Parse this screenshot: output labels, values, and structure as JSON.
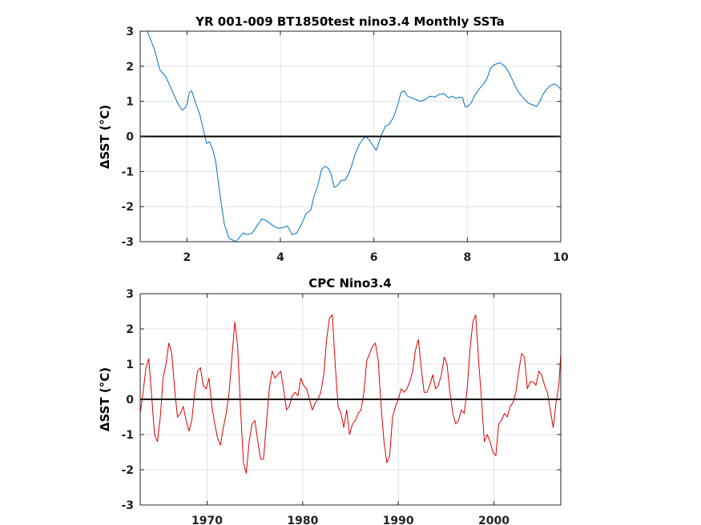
{
  "chart_data": [
    {
      "type": "line",
      "title": "YR 001-009 BT1850test nino3.4 Monthly SSTa",
      "ylabel": "ΔSST (°C)",
      "xlabel": "",
      "xlim": [
        1.0,
        10.0
      ],
      "ylim": [
        -3,
        3
      ],
      "xticks": [
        2,
        4,
        6,
        8,
        10
      ],
      "yticks": [
        -3,
        -2,
        -1,
        0,
        1,
        2,
        3
      ],
      "grid": true,
      "zero_line": true,
      "line_color": "#0072bd",
      "series": [
        {
          "x": [
            1.0,
            1.15,
            1.3,
            1.42,
            1.55,
            1.65,
            1.75,
            1.82,
            1.9,
            1.95,
            2.0,
            2.05,
            2.1,
            2.2,
            2.28,
            2.35,
            2.42,
            2.48,
            2.55,
            2.62,
            2.7,
            2.8,
            2.9,
            3.05,
            3.2,
            3.3,
            3.4,
            3.5,
            3.6,
            3.7,
            3.85,
            3.95,
            4.05,
            4.15,
            4.25,
            4.35,
            4.45,
            4.55,
            4.65,
            4.72,
            4.8,
            4.88,
            4.95,
            5.02,
            5.08,
            5.15,
            5.22,
            5.3,
            5.38,
            5.45,
            5.52,
            5.6,
            5.68,
            5.75,
            5.82,
            5.9,
            6.0,
            6.05,
            6.1,
            6.18,
            6.25,
            6.33,
            6.42,
            6.5,
            6.58,
            6.65,
            6.72,
            6.8,
            6.9,
            7.0,
            7.1,
            7.2,
            7.3,
            7.4,
            7.5,
            7.6,
            7.68,
            7.75,
            7.82,
            7.9,
            7.95,
            8.0,
            8.08,
            8.15,
            8.25,
            8.35,
            8.42,
            8.5,
            8.58,
            8.7,
            8.8,
            8.88,
            8.95,
            9.02,
            9.1,
            9.2,
            9.3,
            9.4,
            9.48,
            9.55,
            9.62,
            9.7,
            9.78,
            9.85,
            9.92,
            10.0
          ],
          "y": [
            3.8,
            3.0,
            2.5,
            1.9,
            1.7,
            1.4,
            1.1,
            0.9,
            0.75,
            0.8,
            0.9,
            1.25,
            1.3,
            0.9,
            0.6,
            0.2,
            -0.2,
            -0.15,
            -0.35,
            -0.75,
            -1.6,
            -2.5,
            -2.9,
            -3.0,
            -2.75,
            -2.8,
            -2.75,
            -2.55,
            -2.35,
            -2.4,
            -2.55,
            -2.62,
            -2.6,
            -2.55,
            -2.8,
            -2.75,
            -2.5,
            -2.2,
            -2.1,
            -1.7,
            -1.4,
            -0.95,
            -0.85,
            -0.9,
            -1.05,
            -1.45,
            -1.4,
            -1.25,
            -1.25,
            -1.1,
            -0.85,
            -0.5,
            -0.25,
            -0.1,
            0.0,
            -0.1,
            -0.3,
            -0.4,
            -0.2,
            0.1,
            0.3,
            0.35,
            0.55,
            0.85,
            1.25,
            1.3,
            1.15,
            1.1,
            1.05,
            1.0,
            1.05,
            1.15,
            1.12,
            1.2,
            1.22,
            1.1,
            1.15,
            1.08,
            1.12,
            1.1,
            0.85,
            0.85,
            0.95,
            1.15,
            1.35,
            1.5,
            1.65,
            1.95,
            2.05,
            2.1,
            2.0,
            1.85,
            1.65,
            1.45,
            1.25,
            1.1,
            0.95,
            0.9,
            0.85,
            1.0,
            1.2,
            1.35,
            1.45,
            1.5,
            1.45,
            1.35
          ]
        }
      ]
    },
    {
      "type": "line",
      "title": "CPC Nino3.4",
      "ylabel": "ΔSST (°C)",
      "xlabel": "",
      "xlim": [
        1963,
        2007
      ],
      "ylim": [
        -3,
        3
      ],
      "xticks": [
        1970,
        1980,
        1990,
        2000
      ],
      "yticks": [
        -3,
        -2,
        -1,
        0,
        1,
        2,
        3
      ],
      "grid": true,
      "zero_line": true,
      "line_color": "#e00000",
      "series": [
        {
          "x": [
            1963.0,
            1963.3,
            1963.6,
            1963.9,
            1964.2,
            1964.5,
            1964.8,
            1965.1,
            1965.4,
            1965.7,
            1966.0,
            1966.3,
            1966.6,
            1966.9,
            1967.2,
            1967.5,
            1967.8,
            1968.1,
            1968.4,
            1968.7,
            1969.0,
            1969.3,
            1969.6,
            1969.9,
            1970.2,
            1970.5,
            1970.8,
            1971.1,
            1971.4,
            1971.7,
            1972.0,
            1972.3,
            1972.6,
            1972.9,
            1973.2,
            1973.5,
            1973.8,
            1974.1,
            1974.4,
            1974.7,
            1975.0,
            1975.3,
            1975.6,
            1975.9,
            1976.2,
            1976.5,
            1976.8,
            1977.1,
            1977.4,
            1977.7,
            1978.0,
            1978.3,
            1978.6,
            1978.9,
            1979.2,
            1979.5,
            1979.8,
            1980.1,
            1980.4,
            1980.7,
            1981.0,
            1981.3,
            1981.6,
            1981.9,
            1982.2,
            1982.5,
            1982.8,
            1983.1,
            1983.4,
            1983.7,
            1984.0,
            1984.3,
            1984.6,
            1984.9,
            1985.2,
            1985.5,
            1985.8,
            1986.1,
            1986.4,
            1986.7,
            1987.0,
            1987.3,
            1987.6,
            1987.9,
            1988.2,
            1988.5,
            1988.8,
            1989.1,
            1989.4,
            1989.7,
            1990.0,
            1990.3,
            1990.6,
            1990.9,
            1991.2,
            1991.5,
            1991.8,
            1992.1,
            1992.4,
            1992.7,
            1993.0,
            1993.3,
            1993.6,
            1993.9,
            1994.2,
            1994.5,
            1994.8,
            1995.1,
            1995.4,
            1995.7,
            1996.0,
            1996.3,
            1996.6,
            1996.9,
            1997.2,
            1997.5,
            1997.8,
            1998.1,
            1998.4,
            1998.7,
            1999.0,
            1999.3,
            1999.6,
            1999.9,
            2000.2,
            2000.5,
            2000.8,
            2001.1,
            2001.4,
            2001.7,
            2002.0,
            2002.3,
            2002.6,
            2002.9,
            2003.2,
            2003.5,
            2003.8,
            2004.1,
            2004.4,
            2004.7,
            2005.0,
            2005.3,
            2005.6,
            2005.9,
            2006.2,
            2006.5,
            2006.8,
            2007.0
          ],
          "y": [
            -0.4,
            0.2,
            0.9,
            1.15,
            0.1,
            -1.0,
            -1.2,
            -0.5,
            0.6,
            1.0,
            1.6,
            1.3,
            0.3,
            -0.5,
            -0.4,
            -0.2,
            -0.6,
            -0.9,
            -0.6,
            0.2,
            0.8,
            0.9,
            0.4,
            0.3,
            0.6,
            -0.2,
            -0.7,
            -1.1,
            -1.3,
            -0.8,
            -0.4,
            0.2,
            1.2,
            2.2,
            1.5,
            -0.3,
            -1.8,
            -2.1,
            -1.2,
            -0.7,
            -0.6,
            -1.2,
            -1.7,
            -1.7,
            -0.7,
            0.3,
            0.8,
            0.6,
            0.7,
            0.8,
            0.3,
            -0.3,
            -0.2,
            0.1,
            0.2,
            0.1,
            0.6,
            0.4,
            0.3,
            0.0,
            -0.3,
            -0.1,
            0.0,
            0.2,
            0.7,
            1.7,
            2.3,
            2.4,
            1.0,
            -0.2,
            -0.4,
            -0.8,
            -0.3,
            -1.0,
            -0.7,
            -0.6,
            -0.4,
            -0.3,
            0.2,
            1.1,
            1.3,
            1.5,
            1.6,
            1.1,
            -0.2,
            -1.2,
            -1.8,
            -1.6,
            -0.5,
            -0.2,
            0.0,
            0.3,
            0.2,
            0.3,
            0.5,
            0.8,
            1.4,
            1.7,
            0.9,
            0.2,
            0.2,
            0.4,
            0.7,
            0.3,
            0.4,
            0.7,
            1.2,
            1.0,
            0.2,
            -0.4,
            -0.7,
            -0.6,
            -0.3,
            -0.4,
            0.3,
            1.4,
            2.2,
            2.4,
            1.1,
            0.0,
            -1.2,
            -1.0,
            -1.2,
            -1.5,
            -1.6,
            -0.7,
            -0.6,
            -0.4,
            -0.5,
            -0.2,
            -0.1,
            0.2,
            0.8,
            1.3,
            1.2,
            0.3,
            0.5,
            0.5,
            0.4,
            0.8,
            0.7,
            0.4,
            0.2,
            -0.3,
            -0.8,
            -0.1,
            0.4,
            1.3
          ]
        }
      ]
    }
  ]
}
